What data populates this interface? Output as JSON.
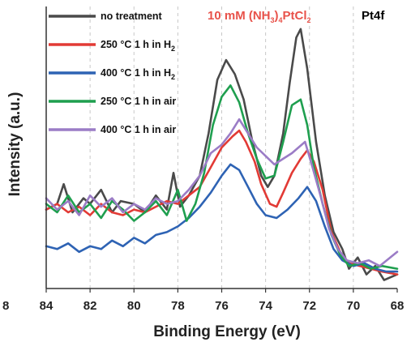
{
  "chart_data": {
    "type": "line",
    "xlabel": "Binding Energy (eV)",
    "ylabel": "Intensity (a.u.)",
    "x_reversed": true,
    "xlim": [
      84,
      68
    ],
    "ylim": [
      0,
      1
    ],
    "x_ticks": [
      "84",
      "82",
      "80",
      "78",
      "76",
      "74",
      "72",
      "70",
      "68"
    ],
    "left_cut_tick": "8",
    "grid": "vertical dashed",
    "legend_position": "top-left",
    "annotations": {
      "sample_prefix": "10 mM (NH",
      "sample_sub1": "3",
      "sample_mid": ")",
      "sample_sub2": "4",
      "sample_main": "PtCl",
      "sample_sub3": "2",
      "region": "Pt4f"
    },
    "annotation_colors": {
      "sample": "#e8524a",
      "region": "#111111"
    },
    "series": [
      {
        "name": "no treatment",
        "name_parts": [
          "no treatment"
        ],
        "color": "#4a4a4a",
        "points": [
          [
            84,
            0.28
          ],
          [
            83.5,
            0.3
          ],
          [
            83.2,
            0.37
          ],
          [
            82.8,
            0.27
          ],
          [
            82.3,
            0.32
          ],
          [
            82,
            0.3
          ],
          [
            81.5,
            0.35
          ],
          [
            81,
            0.27
          ],
          [
            80.6,
            0.31
          ],
          [
            80,
            0.3
          ],
          [
            79.5,
            0.27
          ],
          [
            79,
            0.33
          ],
          [
            78.5,
            0.28
          ],
          [
            78.2,
            0.41
          ],
          [
            77.9,
            0.29
          ],
          [
            77.5,
            0.33
          ],
          [
            77,
            0.4
          ],
          [
            76.6,
            0.55
          ],
          [
            76.2,
            0.74
          ],
          [
            75.8,
            0.81
          ],
          [
            75.4,
            0.76
          ],
          [
            75,
            0.67
          ],
          [
            74.6,
            0.52
          ],
          [
            74.2,
            0.4
          ],
          [
            73.9,
            0.36
          ],
          [
            73.6,
            0.4
          ],
          [
            73.2,
            0.55
          ],
          [
            72.9,
            0.73
          ],
          [
            72.6,
            0.89
          ],
          [
            72.4,
            0.92
          ],
          [
            72.1,
            0.78
          ],
          [
            71.7,
            0.52
          ],
          [
            71.3,
            0.33
          ],
          [
            70.9,
            0.2
          ],
          [
            70.5,
            0.14
          ],
          [
            70.2,
            0.07
          ],
          [
            69.8,
            0.11
          ],
          [
            69.4,
            0.05
          ],
          [
            69,
            0.08
          ],
          [
            68.6,
            0.03
          ],
          [
            68,
            0.05
          ]
        ]
      },
      {
        "name": "250 °C 1 h in H2",
        "name_parts": [
          "250 °C 1 h in H",
          "2"
        ],
        "color": "#e23a35",
        "points": [
          [
            84,
            0.28
          ],
          [
            83.5,
            0.3
          ],
          [
            83,
            0.27
          ],
          [
            82.5,
            0.29
          ],
          [
            82,
            0.26
          ],
          [
            81.5,
            0.3
          ],
          [
            81,
            0.27
          ],
          [
            80.5,
            0.26
          ],
          [
            80,
            0.28
          ],
          [
            79.5,
            0.27
          ],
          [
            79,
            0.29
          ],
          [
            78.5,
            0.31
          ],
          [
            78,
            0.3
          ],
          [
            77.5,
            0.33
          ],
          [
            77,
            0.36
          ],
          [
            76.5,
            0.43
          ],
          [
            76,
            0.5
          ],
          [
            75.5,
            0.54
          ],
          [
            75.2,
            0.56
          ],
          [
            74.9,
            0.52
          ],
          [
            74.5,
            0.45
          ],
          [
            74.2,
            0.37
          ],
          [
            73.8,
            0.3
          ],
          [
            73.5,
            0.29
          ],
          [
            73.2,
            0.34
          ],
          [
            72.8,
            0.41
          ],
          [
            72.4,
            0.46
          ],
          [
            72.1,
            0.49
          ],
          [
            71.8,
            0.45
          ],
          [
            71.4,
            0.35
          ],
          [
            71,
            0.2
          ],
          [
            70.6,
            0.13
          ],
          [
            70.2,
            0.09
          ],
          [
            69.7,
            0.08
          ],
          [
            69.2,
            0.07
          ],
          [
            68.7,
            0.06
          ],
          [
            68,
            0.05
          ]
        ]
      },
      {
        "name": "400 °C 1 h in H2",
        "name_parts": [
          "400 °C 1 h in H",
          "2"
        ],
        "color": "#2e63b4",
        "points": [
          [
            84,
            0.15
          ],
          [
            83.5,
            0.14
          ],
          [
            83,
            0.16
          ],
          [
            82.5,
            0.13
          ],
          [
            82,
            0.15
          ],
          [
            81.5,
            0.14
          ],
          [
            81,
            0.17
          ],
          [
            80.5,
            0.15
          ],
          [
            80,
            0.18
          ],
          [
            79.5,
            0.16
          ],
          [
            79,
            0.19
          ],
          [
            78.5,
            0.2
          ],
          [
            78,
            0.22
          ],
          [
            77.5,
            0.25
          ],
          [
            77,
            0.29
          ],
          [
            76.5,
            0.34
          ],
          [
            76,
            0.4
          ],
          [
            75.6,
            0.44
          ],
          [
            75.2,
            0.42
          ],
          [
            74.8,
            0.36
          ],
          [
            74.4,
            0.3
          ],
          [
            74,
            0.26
          ],
          [
            73.5,
            0.25
          ],
          [
            73,
            0.28
          ],
          [
            72.5,
            0.32
          ],
          [
            72.1,
            0.36
          ],
          [
            71.7,
            0.31
          ],
          [
            71.3,
            0.22
          ],
          [
            70.9,
            0.14
          ],
          [
            70.5,
            0.1
          ],
          [
            70,
            0.08
          ],
          [
            69.5,
            0.09
          ],
          [
            69,
            0.07
          ],
          [
            68.5,
            0.06
          ],
          [
            68,
            0.06
          ]
        ]
      },
      {
        "name": "250 °C 1 h in air",
        "name_parts": [
          "250 °C 1 h in air"
        ],
        "color": "#1f9f4f",
        "points": [
          [
            84,
            0.3
          ],
          [
            83.5,
            0.27
          ],
          [
            83,
            0.33
          ],
          [
            82.5,
            0.27
          ],
          [
            82,
            0.3
          ],
          [
            81.5,
            0.25
          ],
          [
            81,
            0.31
          ],
          [
            80.5,
            0.28
          ],
          [
            80,
            0.24
          ],
          [
            79.5,
            0.27
          ],
          [
            79,
            0.31
          ],
          [
            78.5,
            0.26
          ],
          [
            78,
            0.35
          ],
          [
            77.6,
            0.24
          ],
          [
            77.2,
            0.3
          ],
          [
            76.8,
            0.41
          ],
          [
            76.4,
            0.58
          ],
          [
            76,
            0.68
          ],
          [
            75.6,
            0.72
          ],
          [
            75.2,
            0.66
          ],
          [
            74.8,
            0.55
          ],
          [
            74.4,
            0.46
          ],
          [
            74,
            0.39
          ],
          [
            73.6,
            0.4
          ],
          [
            73.2,
            0.52
          ],
          [
            72.8,
            0.65
          ],
          [
            72.4,
            0.67
          ],
          [
            72.1,
            0.58
          ],
          [
            71.8,
            0.43
          ],
          [
            71.4,
            0.3
          ],
          [
            71,
            0.19
          ],
          [
            70.6,
            0.12
          ],
          [
            70.2,
            0.08
          ],
          [
            69.7,
            0.09
          ],
          [
            69.2,
            0.07
          ],
          [
            68.7,
            0.08
          ],
          [
            68,
            0.07
          ]
        ]
      },
      {
        "name": "400 °C 1 h in air",
        "name_parts": [
          "400 °C 1 h in air"
        ],
        "color": "#9b7cc6",
        "points": [
          [
            84,
            0.32
          ],
          [
            83.5,
            0.28
          ],
          [
            83,
            0.31
          ],
          [
            82.5,
            0.26
          ],
          [
            82,
            0.33
          ],
          [
            81.5,
            0.29
          ],
          [
            81,
            0.32
          ],
          [
            80.5,
            0.27
          ],
          [
            80,
            0.3
          ],
          [
            79.5,
            0.28
          ],
          [
            79,
            0.32
          ],
          [
            78.5,
            0.3
          ],
          [
            78,
            0.31
          ],
          [
            77.5,
            0.35
          ],
          [
            77,
            0.4
          ],
          [
            76.5,
            0.48
          ],
          [
            76,
            0.51
          ],
          [
            75.6,
            0.55
          ],
          [
            75.2,
            0.6
          ],
          [
            74.8,
            0.55
          ],
          [
            74.4,
            0.5
          ],
          [
            74,
            0.47
          ],
          [
            73.6,
            0.44
          ],
          [
            73.2,
            0.46
          ],
          [
            72.8,
            0.48
          ],
          [
            72.5,
            0.5
          ],
          [
            72.2,
            0.52
          ],
          [
            71.9,
            0.44
          ],
          [
            71.5,
            0.33
          ],
          [
            71.1,
            0.21
          ],
          [
            70.7,
            0.14
          ],
          [
            70.3,
            0.1
          ],
          [
            69.8,
            0.09
          ],
          [
            69.3,
            0.1
          ],
          [
            68.8,
            0.08
          ],
          [
            68,
            0.13
          ]
        ]
      }
    ]
  }
}
